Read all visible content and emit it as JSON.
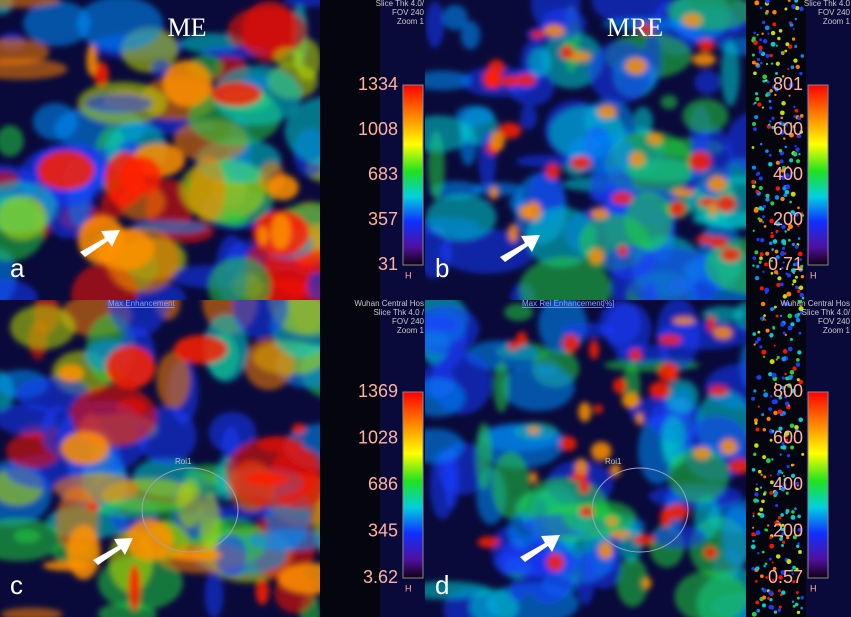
{
  "panels": [
    {
      "letter": "a",
      "title": "ME",
      "info": [
        "Slice Thk 4.0/",
        "FOV 240",
        "Zoom 1"
      ],
      "scale": [
        "1334",
        "1008",
        "683",
        "357",
        "31"
      ],
      "scale_unit": "H"
    },
    {
      "letter": "b",
      "title": "MRE",
      "info": [
        "Slice Thk 4.0",
        "FOV 240",
        "Zoom 1"
      ],
      "scale": [
        "801",
        "600",
        "400",
        "200",
        "0.71"
      ],
      "scale_unit": "H"
    },
    {
      "letter": "c",
      "header": "Max Enhancement",
      "info": [
        "Wuhan Central Hos",
        "Slice Thk 4.0 /",
        "FOV 240",
        "Zoom 1"
      ],
      "roi": "Roi1",
      "scale": [
        "1369",
        "1028",
        "686",
        "345",
        "3.62"
      ],
      "scale_unit": "H"
    },
    {
      "letter": "d",
      "header": "Max Rel Enhancement[%]",
      "info": [
        "Wuhan Central Hos",
        "Slice Thk 4.0/",
        "FOV 240",
        "Zoom 1"
      ],
      "roi": "Roi1",
      "scale": [
        "800",
        "600",
        "400",
        "200",
        "0.57"
      ],
      "scale_unit": "H"
    }
  ]
}
